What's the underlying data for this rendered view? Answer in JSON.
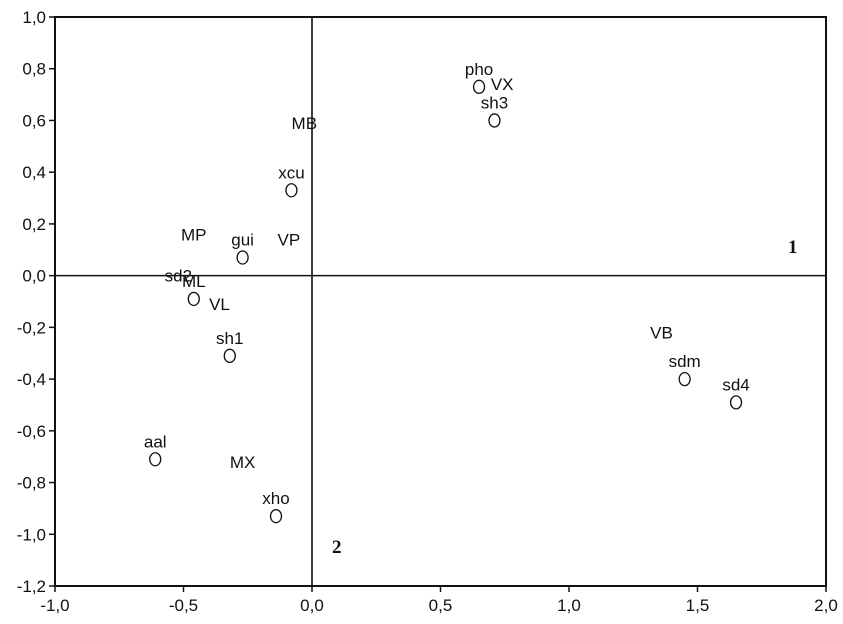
{
  "chart_data": {
    "type": "scatter",
    "title": "",
    "xlabel": "",
    "ylabel": "",
    "xlim": [
      -1.0,
      2.0
    ],
    "ylim": [
      -1.2,
      1.0
    ],
    "grid": false,
    "x_ticks": [
      "-1,0",
      "-0,5",
      "0,0",
      "0,5",
      "1,0",
      "1,5",
      "2,0"
    ],
    "y_ticks": [
      "1,0",
      "0,8",
      "0,6",
      "0,4",
      "0,2",
      "0,0",
      "-0,2",
      "-0,4",
      "-0,6",
      "-0,8",
      "-1,0",
      "-1,2"
    ],
    "axis_numbers": {
      "horizontal": "1",
      "vertical": "2"
    },
    "points": [
      {
        "label": "pho",
        "x": 0.65,
        "y": 0.73
      },
      {
        "label": "sh3",
        "x": 0.71,
        "y": 0.6
      },
      {
        "label": "xcu",
        "x": -0.08,
        "y": 0.33
      },
      {
        "label": "gui",
        "x": -0.27,
        "y": 0.07
      },
      {
        "label": "ML",
        "x": -0.46,
        "y": -0.09
      },
      {
        "label": "sh1",
        "x": -0.32,
        "y": -0.31
      },
      {
        "label": "aal",
        "x": -0.61,
        "y": -0.71
      },
      {
        "label": "xho",
        "x": -0.14,
        "y": -0.93
      },
      {
        "label": "sdm",
        "x": 1.45,
        "y": -0.4
      },
      {
        "label": "sd4",
        "x": 1.65,
        "y": -0.49
      }
    ],
    "text_labels": [
      {
        "text": "VX",
        "x": 0.74,
        "y": 0.74
      },
      {
        "text": "MB",
        "x": -0.03,
        "y": 0.59
      },
      {
        "text": "MP",
        "x": -0.46,
        "y": 0.16
      },
      {
        "text": "VP",
        "x": -0.09,
        "y": 0.14
      },
      {
        "text": "sd2",
        "x": -0.52,
        "y": 0.0
      },
      {
        "text": "VL",
        "x": -0.36,
        "y": -0.11
      },
      {
        "text": "VB",
        "x": 1.36,
        "y": -0.22
      },
      {
        "text": "MX",
        "x": -0.27,
        "y": -0.72
      }
    ]
  }
}
